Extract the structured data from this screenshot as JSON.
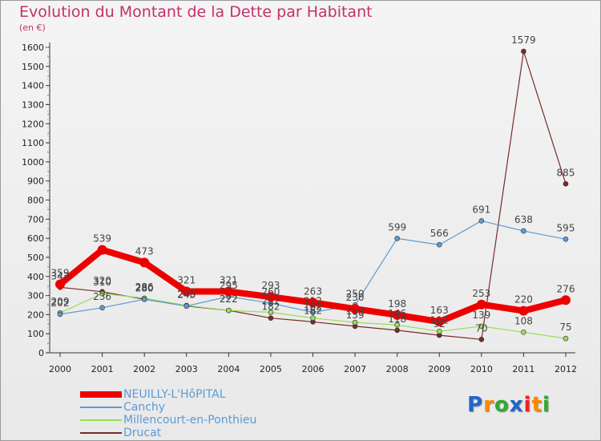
{
  "chart_data": {
    "type": "line",
    "title": "Evolution du Montant de la Dette par Habitant",
    "subtitle": "(en €)",
    "xlabel": "",
    "ylabel": "",
    "categories": [
      "2000",
      "2001",
      "2002",
      "2003",
      "2004",
      "2005",
      "2006",
      "2007",
      "2008",
      "2009",
      "2010",
      "2011",
      "2012"
    ],
    "ylim": [
      0,
      1600
    ],
    "yticks": [
      0,
      100,
      200,
      300,
      400,
      500,
      600,
      700,
      800,
      900,
      1000,
      1100,
      1200,
      1300,
      1400,
      1500,
      1600
    ],
    "grid": false,
    "legend_position": "bottom-left",
    "series": [
      {
        "name": "NEUILLY-L'HôPITAL",
        "color": "#ee0000",
        "values": [
          359,
          539,
          473,
          321,
          321,
          293,
          263,
          230,
          198,
          163,
          253,
          220,
          276
        ],
        "labels": [
          "359",
          "539",
          "473",
          "321",
          "321",
          "293",
          "263",
          "230",
          "198",
          "163",
          "253",
          "220",
          "276"
        ]
      },
      {
        "name": "Canchy",
        "color": "#5b9bd5",
        "values": [
          202,
          236,
          280,
          245,
          295,
          260,
          212,
          250,
          599,
          566,
          691,
          638,
          595
        ],
        "labels": [
          "202",
          "236",
          "280",
          "245",
          "295",
          "260",
          "212",
          "250",
          "599",
          "566",
          "691",
          "638",
          "595"
        ]
      },
      {
        "name": "Millencourt-en-Ponthieu",
        "color": "#99dd55",
        "values": [
          209,
          310,
          286,
          248,
          222,
          212,
          182,
          159,
          146,
          112,
          139,
          108,
          75
        ],
        "labels": [
          "209",
          "310",
          "286",
          "248",
          "222",
          "212",
          "182",
          "159",
          "146",
          "112",
          "139",
          "108",
          "75"
        ]
      },
      {
        "name": "Drucat",
        "color": "#7a2a2a",
        "values": [
          343,
          320,
          280,
          245,
          222,
          182,
          162,
          139,
          118,
          92,
          70,
          1579,
          885
        ],
        "labels": [
          "343",
          "320",
          "280",
          "245",
          "222",
          "182",
          "162",
          "139",
          "118",
          "92",
          "70",
          "1579",
          "885"
        ]
      }
    ]
  },
  "logo": {
    "text": "Proxiti",
    "letters": [
      "P",
      "r",
      "o",
      "x",
      "i",
      "t",
      "i"
    ],
    "colors": [
      "#2266cc",
      "#ff8800",
      "#33aa33",
      "#2266cc",
      "#ee2222",
      "#ff8800",
      "#33aa33"
    ]
  }
}
